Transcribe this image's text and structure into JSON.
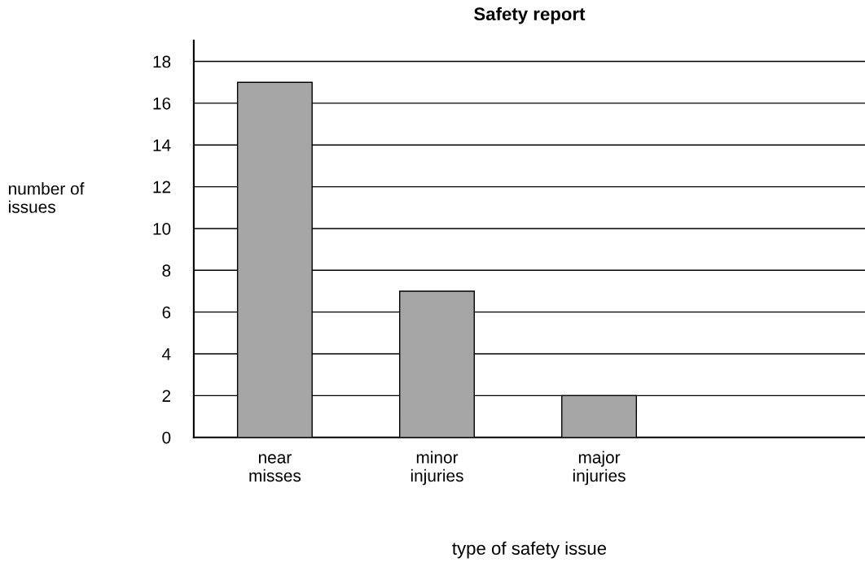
{
  "chart_data": {
    "type": "bar",
    "title": "Safety report",
    "xlabel": "type of safety issue",
    "ylabel": "number of issues",
    "categories": [
      "near misses",
      "minor injuries",
      "major injuries"
    ],
    "values": [
      17,
      7,
      2
    ],
    "color": "#a6a6a6",
    "ylim": [
      0,
      19
    ],
    "yticks": [
      0,
      2,
      4,
      6,
      8,
      10,
      12,
      14,
      16,
      18
    ],
    "grid": "y"
  }
}
